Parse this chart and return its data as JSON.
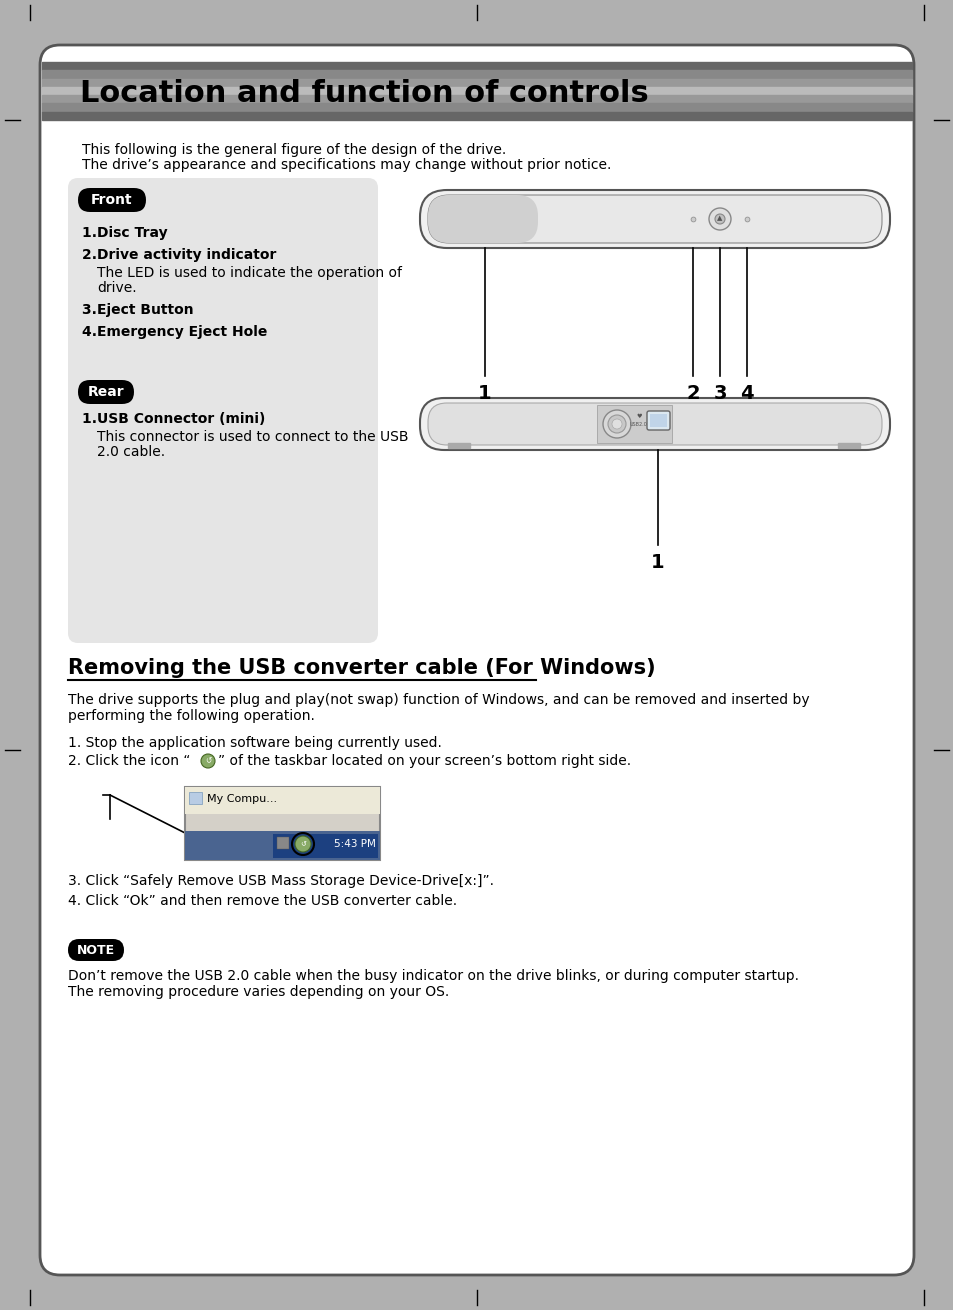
{
  "bg_color": "#b0b0b0",
  "page_bg": "#ffffff",
  "title_text": "Location and function of controls",
  "title_stripe_colors": [
    "#666666",
    "#888888",
    "#999999",
    "#bbbbbb",
    "#999999",
    "#888888",
    "#666666"
  ],
  "title_font_color": "#000000",
  "subtitle1": "This following is the general figure of the design of the drive.",
  "subtitle2": "The drive’s appearance and specifications may change without prior notice.",
  "section_bg": "#e5e5e5",
  "front_label": "Front",
  "rear_label": "Rear",
  "section2_title": "Removing the USB converter cable (For Windows)",
  "para1": "The drive supports the plug and play(not swap) function of Windows, and can be removed and inserted by\nperforming the following operation.",
  "step1": "1. Stop the application software being currently used.",
  "step2_pre": "2. Click the icon “",
  "step2_post": "” of the taskbar located on your screen’s bottom right side.",
  "step3": "3. Click “Safely Remove USB Mass Storage Device-Drive[x:]”.",
  "step4": "4. Click “Ok” and then remove the USB converter cable.",
  "note_label": "NOTE",
  "note_text": "Don’t remove the USB 2.0 cable when the busy indicator on the drive blinks, or during computer startup.\nThe removing procedure varies depending on your OS."
}
